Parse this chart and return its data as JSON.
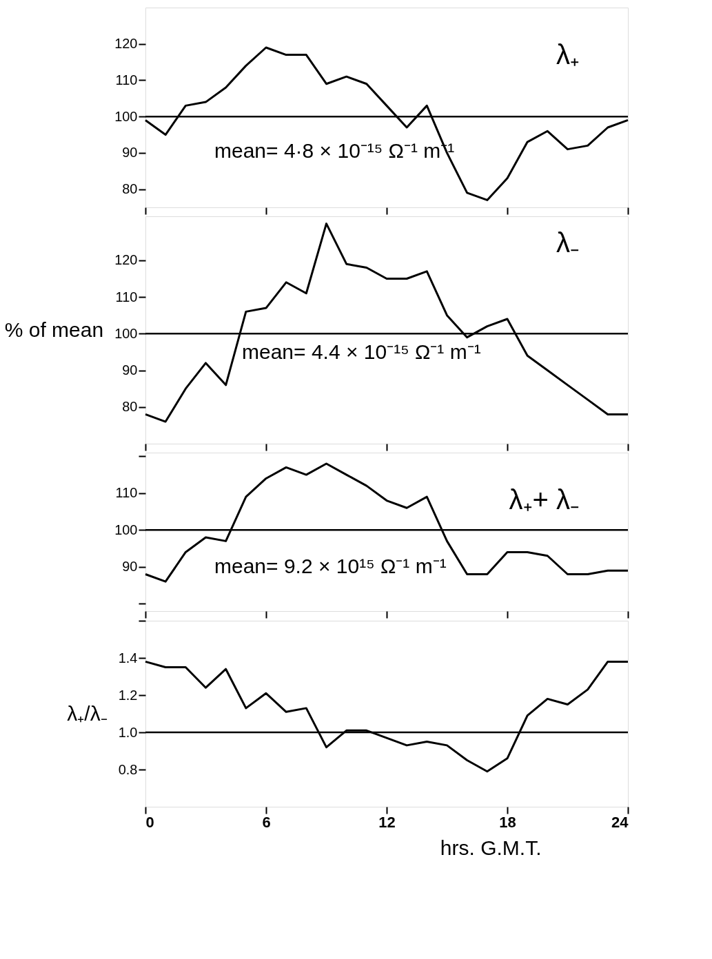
{
  "chart_data": [
    {
      "type": "line",
      "x": [
        0,
        1,
        2,
        3,
        4,
        5,
        6,
        7,
        8,
        9,
        10,
        11,
        12,
        13,
        14,
        15,
        16,
        17,
        18,
        19,
        20,
        21,
        22,
        23,
        24
      ],
      "series": [
        {
          "name": "λ₊",
          "color": "#000000",
          "values": [
            99,
            95,
            103,
            104,
            108,
            114,
            119,
            117,
            117,
            109,
            111,
            109,
            103,
            97,
            103,
            90,
            79,
            77,
            83,
            93,
            96,
            91,
            92,
            97,
            99
          ]
        }
      ],
      "xlim": [
        0,
        24
      ],
      "xticks": [
        0,
        6,
        12,
        18,
        24
      ],
      "ylim": [
        75,
        130
      ],
      "yticks": [
        80,
        90,
        100,
        110,
        120
      ],
      "ref_lines": [
        {
          "axis": "y",
          "value": 100
        }
      ],
      "annotations": [
        "mean= 4·8 × 10⁻¹⁵ Ω⁻¹ m⁻¹"
      ],
      "tick_labels": "y",
      "grid": false,
      "marker": "none",
      "line_style": "solid"
    },
    {
      "type": "line",
      "x": [
        0,
        1,
        2,
        3,
        4,
        5,
        6,
        7,
        8,
        9,
        10,
        11,
        12,
        13,
        14,
        15,
        16,
        17,
        18,
        19,
        20,
        21,
        22,
        23,
        24
      ],
      "series": [
        {
          "name": "λ₋",
          "color": "#000000",
          "values": [
            78,
            76,
            85,
            92,
            86,
            106,
            107,
            114,
            111,
            130,
            119,
            118,
            115,
            115,
            117,
            105,
            99,
            102,
            104,
            94,
            90,
            86,
            82,
            78,
            78
          ]
        }
      ],
      "xlim": [
        0,
        24
      ],
      "xticks": [
        0,
        6,
        12,
        18,
        24
      ],
      "ylim": [
        70,
        132
      ],
      "yticks": [
        80,
        90,
        100,
        110,
        120
      ],
      "ylabel": "% of mean",
      "ref_lines": [
        {
          "axis": "y",
          "value": 100
        }
      ],
      "annotations": [
        "mean= 4.4 × 10⁻¹⁵ Ω⁻¹ m⁻¹"
      ],
      "tick_labels": "y",
      "grid": false,
      "marker": "none",
      "line_style": "solid"
    },
    {
      "type": "line",
      "x": [
        0,
        1,
        2,
        3,
        4,
        5,
        6,
        7,
        8,
        9,
        10,
        11,
        12,
        13,
        14,
        15,
        16,
        17,
        18,
        19,
        20,
        21,
        22,
        23,
        24
      ],
      "series": [
        {
          "name": "λ₊+ λ₋",
          "color": "#000000",
          "values": [
            88,
            86,
            94,
            98,
            97,
            109,
            114,
            117,
            115,
            118,
            115,
            112,
            108,
            106,
            109,
            97,
            88,
            88,
            94,
            94,
            93,
            88,
            88,
            89,
            89
          ]
        }
      ],
      "xlim": [
        0,
        24
      ],
      "xticks": [
        0,
        6,
        12,
        18,
        24
      ],
      "ylim": [
        78,
        121
      ],
      "yticks": [
        {
          "value": 80,
          "label": null
        },
        90,
        100,
        110,
        {
          "value": 120,
          "label": null
        }
      ],
      "ref_lines": [
        {
          "axis": "y",
          "value": 100
        }
      ],
      "annotations": [
        "mean= 9.2 × 10¹⁵ Ω⁻¹ m⁻¹"
      ],
      "tick_labels": "y",
      "grid": false,
      "marker": "none",
      "line_style": "solid"
    },
    {
      "type": "line",
      "x": [
        0,
        1,
        2,
        3,
        4,
        5,
        6,
        7,
        8,
        9,
        10,
        11,
        12,
        13,
        14,
        15,
        16,
        17,
        18,
        19,
        20,
        21,
        22,
        23,
        24
      ],
      "series": [
        {
          "color": "#000000",
          "values": [
            1.38,
            1.35,
            1.35,
            1.24,
            1.34,
            1.13,
            1.21,
            1.11,
            1.13,
            0.92,
            1.01,
            1.01,
            0.97,
            0.93,
            0.95,
            0.93,
            0.85,
            0.79,
            0.86,
            1.09,
            1.18,
            1.15,
            1.23,
            1.38,
            1.38
          ]
        }
      ],
      "xlim": [
        0,
        24
      ],
      "xticks": [
        0,
        6,
        12,
        18,
        24
      ],
      "ylim": [
        0.6,
        1.6
      ],
      "yticks": [
        0.8,
        {
          "value": 1.0,
          "label": "1.0"
        },
        1.2,
        1.4,
        {
          "value": 1.6,
          "label": null
        }
      ],
      "ylabel": "λ₊/λ₋",
      "xlabel": "hrs. G.M.T.",
      "ref_lines": [
        {
          "axis": "y",
          "value": 1.0
        }
      ],
      "grid": false,
      "marker": "none",
      "line_style": "solid"
    }
  ]
}
